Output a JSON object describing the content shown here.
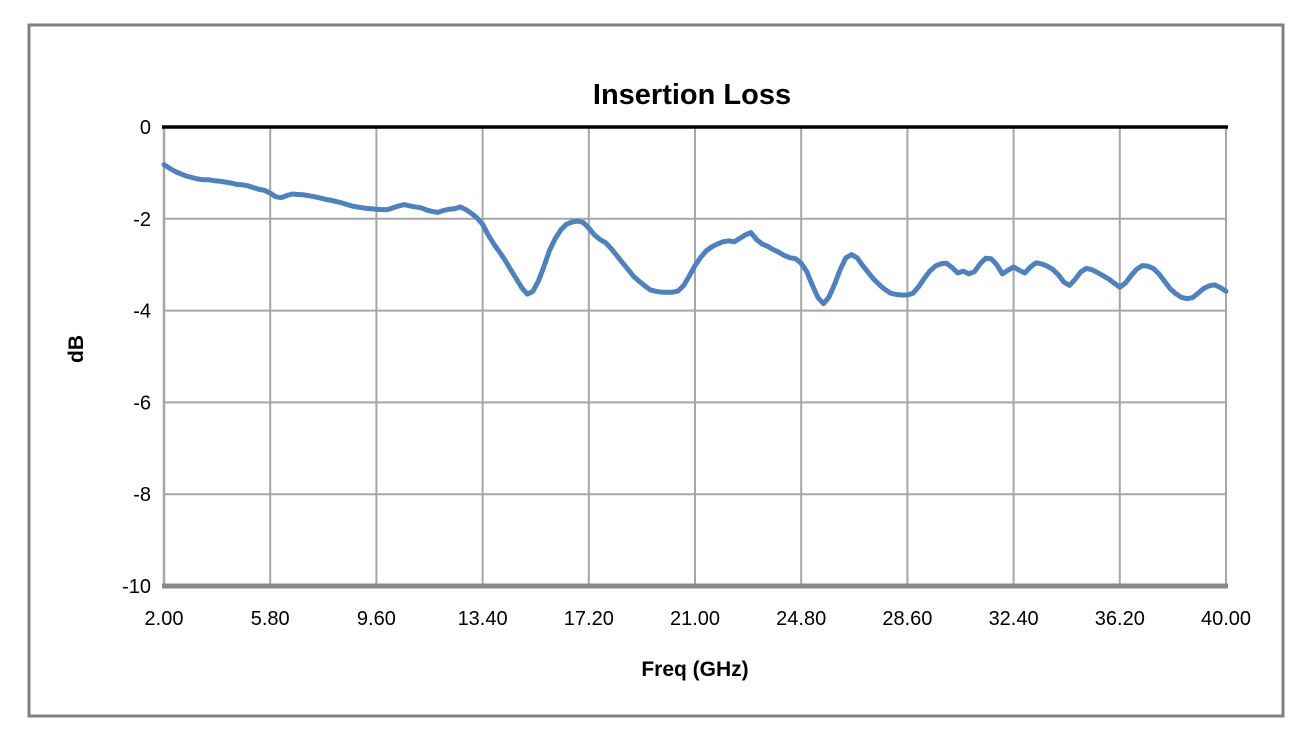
{
  "chart_data": {
    "type": "line",
    "title": "Insertion Loss",
    "xlabel": "Freq (GHz)",
    "ylabel": "dB",
    "xlim": [
      2,
      40
    ],
    "ylim": [
      -10,
      0
    ],
    "grid": true,
    "legend_position": "none",
    "x_ticks": [
      "2.00",
      "5.80",
      "9.60",
      "13.40",
      "17.20",
      "21.00",
      "24.80",
      "28.60",
      "32.40",
      "36.20",
      "40.00"
    ],
    "x_tick_values": [
      2,
      5.8,
      9.6,
      13.4,
      17.2,
      21,
      24.8,
      28.6,
      32.4,
      36.2,
      40
    ],
    "y_ticks": [
      "0",
      "-2",
      "-4",
      "-6",
      "-8",
      "-10"
    ],
    "y_tick_values": [
      0,
      -2,
      -4,
      -6,
      -8,
      -10
    ],
    "colors": {
      "line": "#4F81BD",
      "gridline": "#A6A6A6",
      "zero_axis": "#000000",
      "bottom_axis": "#898989",
      "frame": "#808080",
      "background": "#FFFFFF"
    },
    "series": [
      {
        "name": "Insertion Loss",
        "x": [
          2,
          2.2,
          2.4,
          2.6,
          2.8,
          3,
          3.2,
          3.4,
          3.6,
          3.8,
          4,
          4.2,
          4.4,
          4.6,
          4.8,
          5,
          5.2,
          5.4,
          5.6,
          5.8,
          6,
          6.2,
          6.4,
          6.6,
          6.8,
          7,
          7.2,
          7.4,
          7.6,
          7.8,
          8,
          8.2,
          8.4,
          8.6,
          8.8,
          9,
          9.2,
          9.4,
          9.6,
          9.8,
          10,
          10.2,
          10.4,
          10.6,
          10.8,
          11,
          11.2,
          11.4,
          11.6,
          11.8,
          12,
          12.2,
          12.4,
          12.6,
          12.8,
          13,
          13.2,
          13.4,
          13.6,
          13.8,
          14,
          14.2,
          14.4,
          14.6,
          14.8,
          15,
          15.2,
          15.4,
          15.6,
          15.8,
          16,
          16.2,
          16.4,
          16.6,
          16.8,
          17,
          17.2,
          17.4,
          17.6,
          17.8,
          18,
          18.2,
          18.4,
          18.6,
          18.8,
          19,
          19.2,
          19.4,
          19.6,
          19.8,
          20,
          20.2,
          20.4,
          20.6,
          20.8,
          21,
          21.2,
          21.4,
          21.6,
          21.8,
          22,
          22.2,
          22.4,
          22.6,
          22.8,
          23,
          23.2,
          23.4,
          23.6,
          23.8,
          24,
          24.2,
          24.4,
          24.6,
          24.8,
          25,
          25.2,
          25.4,
          25.6,
          25.8,
          26,
          26.2,
          26.4,
          26.6,
          26.8,
          27,
          27.2,
          27.4,
          27.6,
          27.8,
          28,
          28.2,
          28.4,
          28.6,
          28.8,
          29,
          29.2,
          29.4,
          29.6,
          29.8,
          30,
          30.2,
          30.4,
          30.6,
          30.8,
          31,
          31.2,
          31.4,
          31.6,
          31.8,
          32,
          32.2,
          32.4,
          32.6,
          32.8,
          33,
          33.2,
          33.4,
          33.6,
          33.8,
          34,
          34.2,
          34.4,
          34.6,
          34.8,
          35,
          35.2,
          35.4,
          35.6,
          35.8,
          36,
          36.2,
          36.4,
          36.6,
          36.8,
          37,
          37.2,
          37.4,
          37.6,
          37.8,
          38,
          38.2,
          38.4,
          38.6,
          38.8,
          39,
          39.2,
          39.4,
          39.6,
          39.8,
          40
        ],
        "y": [
          -0.82,
          -0.9,
          -0.97,
          -1.02,
          -1.07,
          -1.1,
          -1.13,
          -1.15,
          -1.15,
          -1.17,
          -1.18,
          -1.2,
          -1.22,
          -1.25,
          -1.26,
          -1.28,
          -1.32,
          -1.36,
          -1.38,
          -1.44,
          -1.52,
          -1.54,
          -1.49,
          -1.46,
          -1.47,
          -1.48,
          -1.5,
          -1.52,
          -1.55,
          -1.58,
          -1.6,
          -1.63,
          -1.66,
          -1.7,
          -1.73,
          -1.75,
          -1.77,
          -1.78,
          -1.79,
          -1.8,
          -1.8,
          -1.76,
          -1.72,
          -1.69,
          -1.72,
          -1.74,
          -1.76,
          -1.81,
          -1.84,
          -1.86,
          -1.82,
          -1.79,
          -1.78,
          -1.74,
          -1.8,
          -1.88,
          -1.98,
          -2.12,
          -2.35,
          -2.55,
          -2.72,
          -2.9,
          -3.1,
          -3.3,
          -3.5,
          -3.64,
          -3.58,
          -3.35,
          -3.03,
          -2.68,
          -2.43,
          -2.24,
          -2.12,
          -2.07,
          -2.05,
          -2.08,
          -2.2,
          -2.35,
          -2.45,
          -2.52,
          -2.65,
          -2.8,
          -2.95,
          -3.1,
          -3.25,
          -3.36,
          -3.46,
          -3.55,
          -3.58,
          -3.6,
          -3.6,
          -3.6,
          -3.57,
          -3.45,
          -3.24,
          -3.02,
          -2.84,
          -2.7,
          -2.61,
          -2.55,
          -2.5,
          -2.48,
          -2.5,
          -2.43,
          -2.35,
          -2.3,
          -2.45,
          -2.55,
          -2.6,
          -2.67,
          -2.73,
          -2.8,
          -2.85,
          -2.87,
          -2.97,
          -3.15,
          -3.45,
          -3.72,
          -3.85,
          -3.7,
          -3.42,
          -3.1,
          -2.85,
          -2.78,
          -2.85,
          -3.02,
          -3.17,
          -3.32,
          -3.44,
          -3.54,
          -3.62,
          -3.65,
          -3.66,
          -3.66,
          -3.62,
          -3.48,
          -3.3,
          -3.14,
          -3.03,
          -2.98,
          -2.97,
          -3.06,
          -3.18,
          -3.14,
          -3.2,
          -3.15,
          -2.98,
          -2.86,
          -2.87,
          -3.0,
          -3.2,
          -3.12,
          -3.05,
          -3.12,
          -3.18,
          -3.05,
          -2.96,
          -2.98,
          -3.03,
          -3.1,
          -3.22,
          -3.38,
          -3.45,
          -3.32,
          -3.16,
          -3.08,
          -3.11,
          -3.17,
          -3.24,
          -3.31,
          -3.4,
          -3.49,
          -3.4,
          -3.24,
          -3.1,
          -3.02,
          -3.03,
          -3.08,
          -3.2,
          -3.36,
          -3.52,
          -3.63,
          -3.71,
          -3.74,
          -3.72,
          -3.62,
          -3.52,
          -3.46,
          -3.44,
          -3.5,
          -3.58
        ]
      }
    ]
  }
}
